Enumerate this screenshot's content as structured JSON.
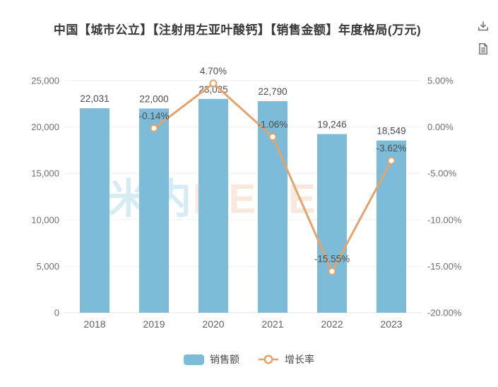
{
  "chart_data": {
    "type": "bar",
    "title": "中国【城市公立】【注射用左亚叶酸钙】【销售金额】年度格局(万元)",
    "categories": [
      "2018",
      "2019",
      "2020",
      "2021",
      "2022",
      "2023"
    ],
    "series": [
      {
        "name": "销售额",
        "type": "bar",
        "axis": "left",
        "color": "#7cbcd8",
        "values": [
          22031,
          22000,
          23035,
          22790,
          19246,
          18549
        ],
        "labels": [
          "22,031",
          "22,000",
          "23,035",
          "22,790",
          "19,246",
          "18,549"
        ]
      },
      {
        "name": "增长率",
        "type": "line",
        "axis": "right",
        "color": "#e3a36d",
        "values": [
          null,
          -0.14,
          4.7,
          -1.06,
          -15.55,
          -3.62
        ],
        "labels": [
          null,
          "-0.14%",
          "4.70%",
          "-1.06%",
          "-15.55%",
          "-3.62%"
        ]
      }
    ],
    "left_axis": {
      "min": 0,
      "max": 25000,
      "ticks": [
        "0",
        "5,000",
        "10,000",
        "15,000",
        "20,000",
        "25,000"
      ]
    },
    "right_axis": {
      "min": -20,
      "max": 5,
      "ticks": [
        "-20.00%",
        "-15.00%",
        "-10.00%",
        "-5.00%",
        "0.00%",
        "5.00%"
      ]
    },
    "grid": true,
    "legend_position": "bottom"
  },
  "toolbox": {
    "save_image_icon": "download-icon",
    "data_view_icon": "document-icon"
  },
  "watermark": {
    "text1": "米内",
    "text2": "MENET",
    "color1": "rgba(124,188,216,0.30)",
    "color2": "rgba(227,163,109,0.24)"
  },
  "colors": {
    "bar": "#7cbcd8",
    "line": "#e3a36d",
    "axis_label": "#6e7079",
    "data_label": "#4d4d4d",
    "gridline": "#efefef",
    "axis_line": "#dfe3ea",
    "title": "#383838",
    "icon": "#757575"
  }
}
